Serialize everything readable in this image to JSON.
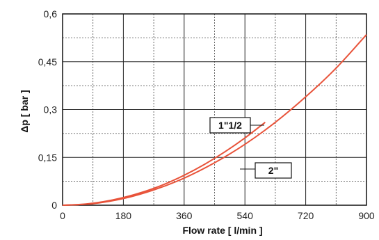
{
  "chart_data": {
    "type": "line",
    "xlabel": "Flow rate [ l/min ]",
    "ylabel": "Δp [ bar ]",
    "xlim": [
      0,
      900
    ],
    "ylim": [
      0,
      0.6
    ],
    "x_ticks": [
      0,
      180,
      360,
      540,
      720,
      900
    ],
    "x_tick_labels": [
      "0",
      "180",
      "360",
      "540",
      "720",
      "900"
    ],
    "y_ticks": [
      0,
      0.15,
      0.3,
      0.45,
      0.6
    ],
    "y_tick_labels": [
      "0",
      "0,15",
      "0,3",
      "0,45",
      "0,6"
    ],
    "grid": {
      "major": true,
      "minor_dashed": true
    },
    "series": [
      {
        "name": "1\"1/2",
        "color": "#e8533a",
        "x": [
          0,
          60,
          120,
          180,
          240,
          300,
          360,
          420,
          480,
          540,
          600
        ],
        "y": [
          0,
          0.003,
          0.011,
          0.024,
          0.042,
          0.065,
          0.094,
          0.128,
          0.167,
          0.211,
          0.26
        ]
      },
      {
        "name": "2\"",
        "color": "#e8533a",
        "x": [
          0,
          90,
          180,
          270,
          360,
          450,
          540,
          630,
          720,
          810,
          900
        ],
        "y": [
          0,
          0.005,
          0.021,
          0.048,
          0.085,
          0.133,
          0.191,
          0.26,
          0.34,
          0.43,
          0.535
        ]
      }
    ]
  }
}
